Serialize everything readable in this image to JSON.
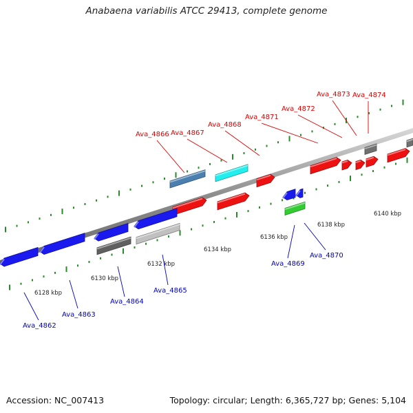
{
  "title": "Anabaena variabilis ATCC 29413, complete genome",
  "footer": {
    "accession": "Accession: NC_007413",
    "topology": "Topology: circular; Length: 6,365,727 bp; Genes: 5,104"
  },
  "colors": {
    "forward_gene": "#ee1111",
    "reverse_gene": "#1a1aee",
    "forward_label": "#dd0000",
    "reverse_label": "#0000bb",
    "backbone": "#8c8c8c",
    "tick": "#2a8a2a"
  },
  "scale_labels": [
    "6128 kbp",
    "6130 kbp",
    "6132 kbp",
    "6134 kbp",
    "6136 kbp",
    "6138 kbp",
    "6140 kbp"
  ],
  "genes": [
    {
      "name": "Ava_4862",
      "strand": "reverse",
      "color": "#1a1aee"
    },
    {
      "name": "Ava_4863",
      "strand": "reverse",
      "color": "#1a1aee"
    },
    {
      "name": "Ava_4864",
      "strand": "reverse",
      "color": "#606060"
    },
    {
      "name": "Ava_4865",
      "strand": "reverse",
      "color": "#c0c0c0"
    },
    {
      "name": "Ava_4866",
      "strand": "forward",
      "color": "#4a7fb0"
    },
    {
      "name": "Ava_4867",
      "strand": "forward",
      "color": "#22eeee"
    },
    {
      "name": "Ava_4868",
      "strand": "forward",
      "color": "#ee1111"
    },
    {
      "name": "Ava_4869",
      "strand": "reverse",
      "color": "#1a1aee"
    },
    {
      "name": "Ava_4870",
      "strand": "reverse",
      "color": "#33cc33"
    },
    {
      "name": "Ava_4871",
      "strand": "forward",
      "color": "#ee1111"
    },
    {
      "name": "Ava_4872",
      "strand": "forward",
      "color": "#ee1111"
    },
    {
      "name": "Ava_4873",
      "strand": "forward",
      "color": "#ee1111"
    },
    {
      "name": "Ava_4874",
      "strand": "forward",
      "color": "#707070"
    }
  ]
}
